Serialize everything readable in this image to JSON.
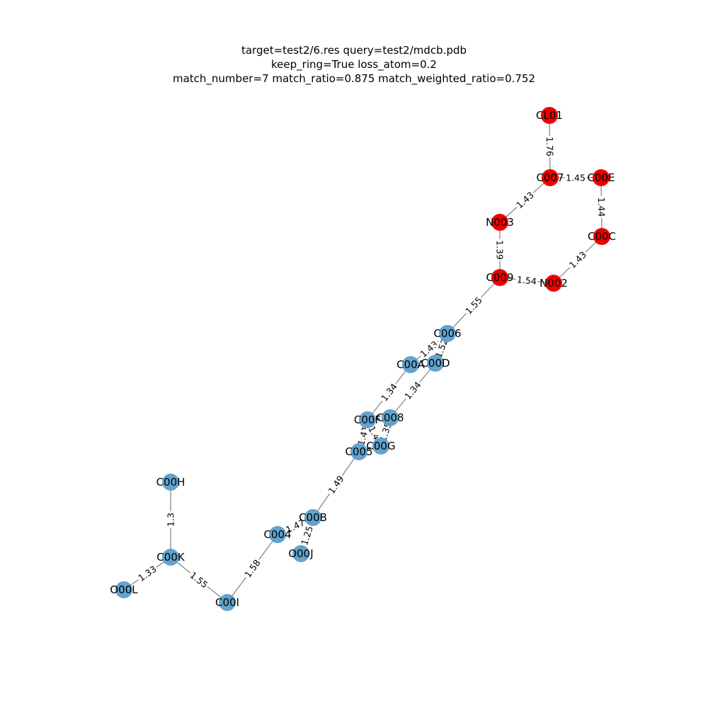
{
  "title": {
    "line1": "target=test2/6.res query=test2/mdcb.pdb",
    "line2": "keep_ring=True loss_atom=0.2",
    "line3": "match_number=7 match_ratio=0.875 match_weighted_ratio=0.752"
  },
  "colors": {
    "matched": "#ee0000",
    "unmatched": "#5b9ecb",
    "edge": "#808080"
  },
  "nodes": [
    {
      "id": "CL01",
      "label": "CL01",
      "matched": true
    },
    {
      "id": "C007",
      "label": "C007",
      "matched": true
    },
    {
      "id": "C00E",
      "label": "C00E",
      "matched": true
    },
    {
      "id": "N003",
      "label": "N003",
      "matched": true
    },
    {
      "id": "C00C",
      "label": "C00C",
      "matched": true
    },
    {
      "id": "C009",
      "label": "C009",
      "matched": true
    },
    {
      "id": "N002",
      "label": "N002",
      "matched": true
    },
    {
      "id": "C006",
      "label": "C006",
      "matched": false
    },
    {
      "id": "C00A",
      "label": "C00A",
      "matched": false
    },
    {
      "id": "C00D",
      "label": "C00D",
      "matched": false
    },
    {
      "id": "C00F",
      "label": "C00F",
      "matched": false
    },
    {
      "id": "C008",
      "label": "C008",
      "matched": false
    },
    {
      "id": "C00G",
      "label": "C00G",
      "matched": false
    },
    {
      "id": "C005",
      "label": "C005",
      "matched": false
    },
    {
      "id": "C00H",
      "label": "C00H",
      "matched": false
    },
    {
      "id": "C00B",
      "label": "C00B",
      "matched": false
    },
    {
      "id": "C004",
      "label": "C004",
      "matched": false
    },
    {
      "id": "O00J",
      "label": "O00J",
      "matched": false
    },
    {
      "id": "C00K",
      "label": "C00K",
      "matched": false
    },
    {
      "id": "O00L",
      "label": "O00L",
      "matched": false
    },
    {
      "id": "C00I",
      "label": "C00I",
      "matched": false
    }
  ],
  "edges": [
    {
      "source": "CL01",
      "target": "C007",
      "label": "1.76"
    },
    {
      "source": "C007",
      "target": "C00E",
      "label": "1.45"
    },
    {
      "source": "C007",
      "target": "N003",
      "label": "1.43"
    },
    {
      "source": "C00E",
      "target": "C00C",
      "label": "1.44"
    },
    {
      "source": "N003",
      "target": "C009",
      "label": "1.39"
    },
    {
      "source": "C00C",
      "target": "N002",
      "label": "1.43"
    },
    {
      "source": "C009",
      "target": "N002",
      "label": "1.54"
    },
    {
      "source": "C009",
      "target": "C006",
      "label": "1.55"
    },
    {
      "source": "C006",
      "target": "C00A",
      "label": "1.43"
    },
    {
      "source": "C006",
      "target": "C00D",
      "label": "1.52"
    },
    {
      "source": "C00A",
      "target": "C00F",
      "label": "1.34"
    },
    {
      "source": "C00D",
      "target": "C008",
      "label": "1.34"
    },
    {
      "source": "C00F",
      "target": "C005",
      "label": "1.41"
    },
    {
      "source": "C00F",
      "target": "C00G",
      "label": "1.4"
    },
    {
      "source": "C008",
      "target": "C00G",
      "label": "1.35"
    },
    {
      "source": "C005",
      "target": "C00B",
      "label": "1.49"
    },
    {
      "source": "C00B",
      "target": "C004",
      "label": "1.47"
    },
    {
      "source": "C00B",
      "target": "O00J",
      "label": "1.25"
    },
    {
      "source": "C004",
      "target": "C00I",
      "label": "1.58"
    },
    {
      "source": "C00I",
      "target": "C00K",
      "label": "1.55"
    },
    {
      "source": "C00K",
      "target": "C00H",
      "label": "1.3"
    },
    {
      "source": "C00K",
      "target": "O00L",
      "label": "1.33"
    }
  ]
}
